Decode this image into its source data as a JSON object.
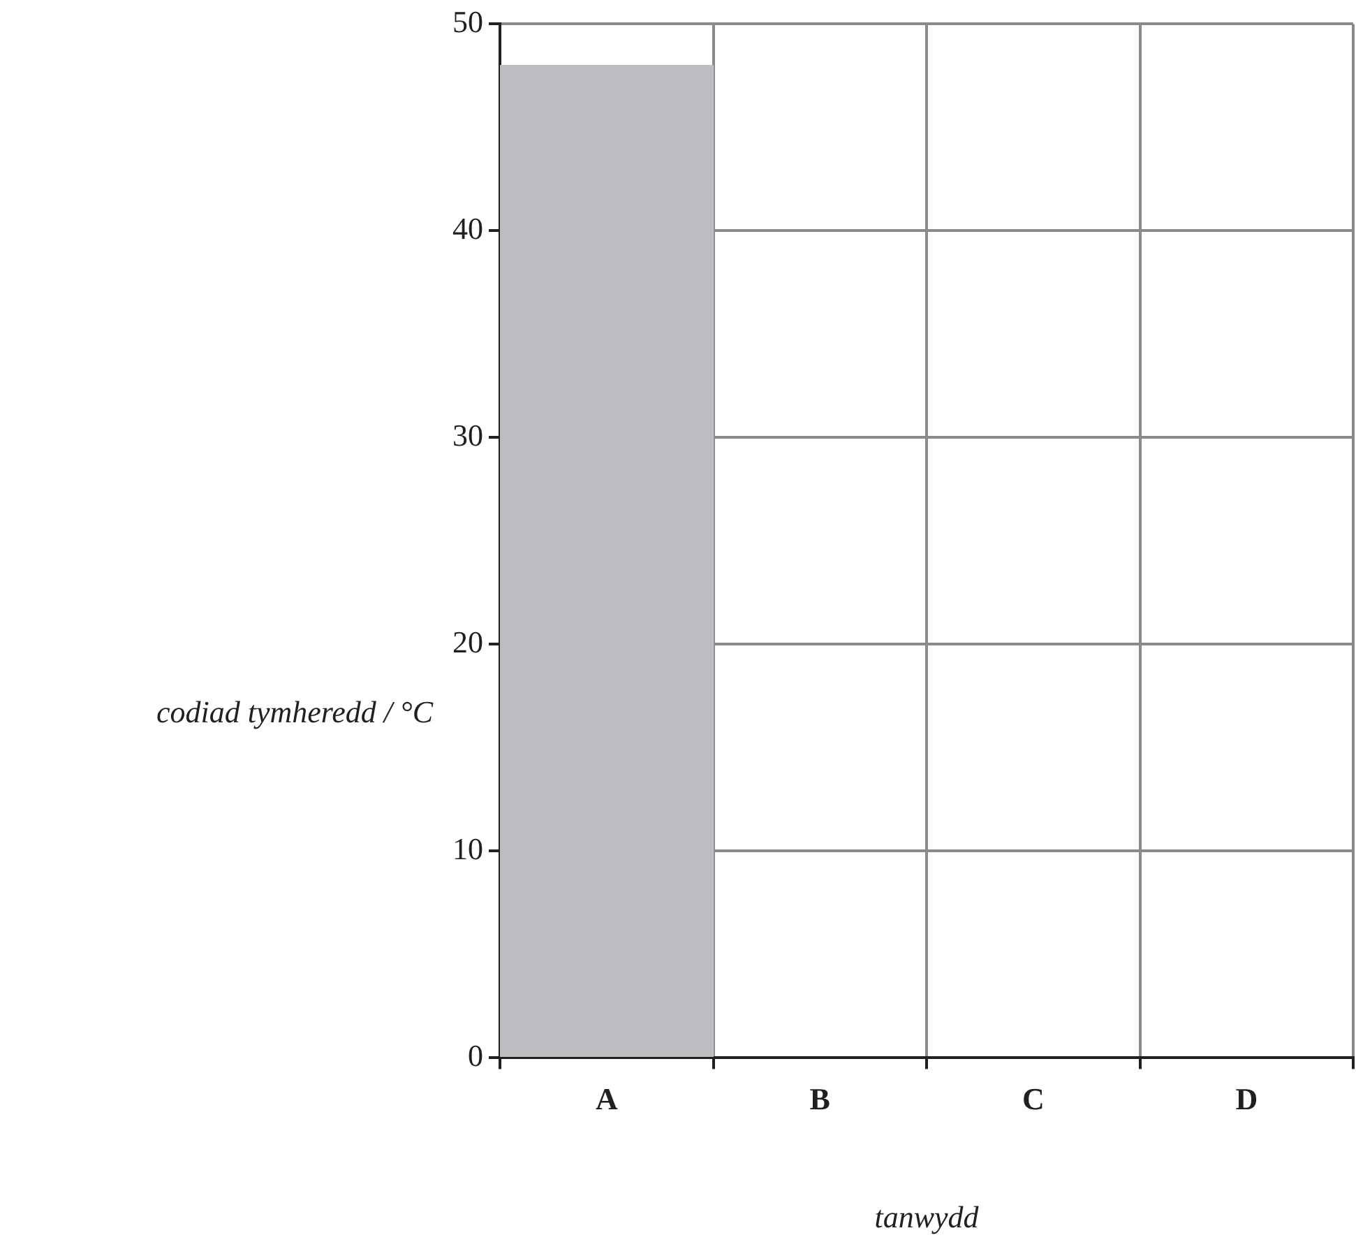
{
  "chart_data": {
    "type": "bar",
    "xlabel": "tanwydd",
    "ylabel": "codiad tymheredd / °C",
    "categories": [
      "A",
      "B",
      "C",
      "D"
    ],
    "values": [
      48,
      null,
      null,
      null
    ],
    "color": "#bcbdc1",
    "ylim": [
      0,
      50
    ],
    "yticks": [
      0,
      10,
      20,
      30,
      40,
      50
    ],
    "grid": true
  }
}
